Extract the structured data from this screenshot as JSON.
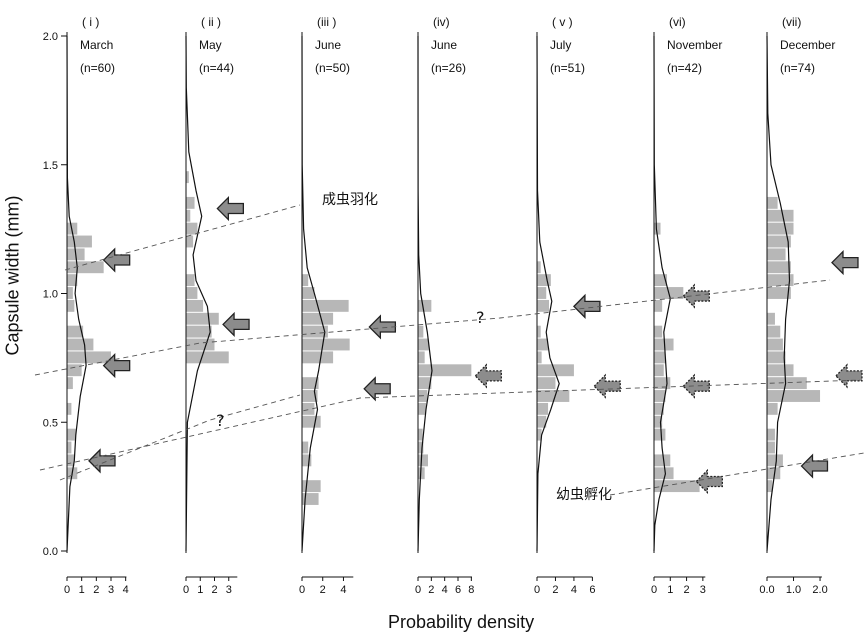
{
  "chart_data": {
    "type": "bar",
    "orientation": "horizontal-histogram-with-density-curve",
    "ylabel": "Capsule width (mm)",
    "xlabel": "Probability density",
    "ylim": [
      0,
      2.0
    ],
    "yticks": [
      "0.0",
      "0.5",
      "1.0",
      "1.5",
      "2.0"
    ],
    "bar_color": "#b7b7b7",
    "curve_color": "#111111",
    "arrow_color": "#8c8c8c",
    "panels": [
      {
        "roman": "( i )",
        "month": "March",
        "n": "(n=60)",
        "xmax": 4.5,
        "xticks": [
          {
            "v": 0,
            "t": "0"
          },
          {
            "v": 1,
            "t": "1"
          },
          {
            "v": 2,
            "t": "2"
          },
          {
            "v": 3,
            "t": "3"
          },
          {
            "v": 4,
            "t": "4"
          }
        ],
        "bins": [
          [
            0.3,
            0.7
          ],
          [
            0.35,
            0.5
          ],
          [
            0.4,
            0.3
          ],
          [
            0.45,
            0.6
          ],
          [
            0.55,
            0.3
          ],
          [
            0.65,
            0.4
          ],
          [
            0.7,
            1.0
          ],
          [
            0.75,
            3.0
          ],
          [
            0.8,
            1.8
          ],
          [
            0.85,
            1.1
          ],
          [
            0.95,
            0.5
          ],
          [
            1.0,
            0.4
          ],
          [
            1.05,
            0.7
          ],
          [
            1.1,
            2.5
          ],
          [
            1.15,
            1.2
          ],
          [
            1.2,
            1.7
          ],
          [
            1.25,
            0.7
          ]
        ],
        "curve": [
          [
            0.0,
            0.0
          ],
          [
            0.25,
            0.2
          ],
          [
            0.35,
            0.5
          ],
          [
            0.45,
            0.6
          ],
          [
            0.6,
            0.9
          ],
          [
            0.72,
            1.3
          ],
          [
            0.8,
            1.2
          ],
          [
            0.9,
            0.8
          ],
          [
            1.0,
            0.55
          ],
          [
            1.1,
            0.7
          ],
          [
            1.2,
            0.5
          ],
          [
            1.3,
            0.15
          ],
          [
            1.45,
            0.03
          ],
          [
            2.0,
            0.0
          ]
        ],
        "arrows": [
          {
            "y": 1.13,
            "x": 2.5
          },
          {
            "y": 0.72,
            "x": 2.5
          },
          {
            "y": 0.35,
            "x": 1.5
          }
        ]
      },
      {
        "roman": "( ii )",
        "month": "May",
        "n": "(n=44)",
        "xmax": 4.0,
        "xticks": [
          {
            "v": 0,
            "t": "0"
          },
          {
            "v": 1,
            "t": "1"
          },
          {
            "v": 2,
            "t": "2"
          },
          {
            "v": 3,
            "t": "3"
          }
        ],
        "bins": [
          [
            0.75,
            3.0
          ],
          [
            0.8,
            2.0
          ],
          [
            0.85,
            1.8
          ],
          [
            0.9,
            2.3
          ],
          [
            0.95,
            1.2
          ],
          [
            1.0,
            0.8
          ],
          [
            1.05,
            0.6
          ],
          [
            1.2,
            0.5
          ],
          [
            1.25,
            0.8
          ],
          [
            1.3,
            0.3
          ],
          [
            1.35,
            0.6
          ],
          [
            1.45,
            0.2
          ]
        ],
        "curve": [
          [
            0.0,
            0.0
          ],
          [
            0.5,
            0.1
          ],
          [
            0.7,
            0.8
          ],
          [
            0.85,
            1.7
          ],
          [
            0.95,
            1.5
          ],
          [
            1.05,
            0.7
          ],
          [
            1.15,
            0.5
          ],
          [
            1.3,
            1.1
          ],
          [
            1.4,
            0.7
          ],
          [
            1.55,
            0.2
          ],
          [
            1.8,
            0.02
          ],
          [
            2.0,
            0.0
          ]
        ],
        "arrows": [
          {
            "y": 1.33,
            "x": 2.2
          },
          {
            "y": 0.88,
            "x": 2.6
          }
        ]
      },
      {
        "roman": "(iii )",
        "month": "June",
        "n": "(n=50)",
        "xmax": 5.5,
        "xticks": [
          {
            "v": 0,
            "t": "0"
          },
          {
            "v": 2,
            "t": "2"
          },
          {
            "v": 4,
            "t": "4"
          }
        ],
        "bins": [
          [
            0.2,
            1.6
          ],
          [
            0.25,
            1.8
          ],
          [
            0.35,
            0.9
          ],
          [
            0.4,
            0.6
          ],
          [
            0.5,
            1.8
          ],
          [
            0.55,
            1.2
          ],
          [
            0.6,
            1.5
          ],
          [
            0.65,
            1.6
          ],
          [
            0.75,
            3.0
          ],
          [
            0.8,
            4.6
          ],
          [
            0.85,
            2.5
          ],
          [
            0.9,
            3.0
          ],
          [
            0.95,
            4.5
          ],
          [
            1.0,
            1.2
          ],
          [
            1.05,
            0.6
          ]
        ],
        "curve": [
          [
            0.0,
            0.0
          ],
          [
            0.2,
            0.3
          ],
          [
            0.4,
            0.8
          ],
          [
            0.55,
            1.5
          ],
          [
            0.62,
            1.2
          ],
          [
            0.7,
            1.6
          ],
          [
            0.85,
            2.2
          ],
          [
            1.0,
            1.2
          ],
          [
            1.1,
            0.5
          ],
          [
            1.25,
            0.15
          ],
          [
            1.5,
            0.02
          ],
          [
            2.0,
            0.0
          ]
        ],
        "arrows": [
          {
            "y": 0.87,
            "x": 6.5
          },
          {
            "y": 0.63,
            "x": 6.0
          }
        ]
      },
      {
        "roman": "(iv)",
        "month": "June",
        "n": "(n=26)",
        "xmax": 9.0,
        "xticks": [
          {
            "v": 0,
            "t": "0"
          },
          {
            "v": 2,
            "t": "2"
          },
          {
            "v": 4,
            "t": "4"
          },
          {
            "v": 6,
            "t": "6"
          },
          {
            "v": 8,
            "t": "8"
          }
        ],
        "bins": [
          [
            0.3,
            1.0
          ],
          [
            0.35,
            1.5
          ],
          [
            0.4,
            0.8
          ],
          [
            0.45,
            0.7
          ],
          [
            0.55,
            1.2
          ],
          [
            0.6,
            1.4
          ],
          [
            0.65,
            2.0
          ],
          [
            0.7,
            8.0
          ],
          [
            0.75,
            1.0
          ],
          [
            0.8,
            1.6
          ],
          [
            0.85,
            0.8
          ],
          [
            0.95,
            2.0
          ]
        ],
        "curve": [
          [
            0.0,
            0.0
          ],
          [
            0.2,
            0.2
          ],
          [
            0.4,
            0.6
          ],
          [
            0.55,
            1.2
          ],
          [
            0.7,
            2.1
          ],
          [
            0.85,
            1.4
          ],
          [
            1.0,
            0.4
          ],
          [
            1.15,
            0.1
          ],
          [
            1.4,
            0.02
          ],
          [
            2.0,
            0.0
          ]
        ],
        "arrows": [
          {
            "y": 0.68,
            "x": 8.6
          }
        ]
      },
      {
        "roman": "( v )",
        "month": "July",
        "n": "(n=51)",
        "xmax": 6.5,
        "xticks": [
          {
            "v": 0,
            "t": "0"
          },
          {
            "v": 2,
            "t": "2"
          },
          {
            "v": 4,
            "t": "4"
          },
          {
            "v": 6,
            "t": "6"
          }
        ],
        "bins": [
          [
            0.45,
            0.5
          ],
          [
            0.5,
            1.0
          ],
          [
            0.55,
            1.2
          ],
          [
            0.6,
            3.5
          ],
          [
            0.65,
            2.0
          ],
          [
            0.7,
            4.0
          ],
          [
            0.75,
            0.5
          ],
          [
            0.8,
            1.2
          ],
          [
            0.85,
            0.4
          ],
          [
            0.95,
            1.3
          ],
          [
            1.0,
            1.0
          ],
          [
            1.05,
            1.5
          ],
          [
            1.1,
            0.4
          ]
        ],
        "curve": [
          [
            0.0,
            0.0
          ],
          [
            0.3,
            0.1
          ],
          [
            0.45,
            0.5
          ],
          [
            0.55,
            1.5
          ],
          [
            0.65,
            2.4
          ],
          [
            0.75,
            1.4
          ],
          [
            0.85,
            1.0
          ],
          [
            0.97,
            1.6
          ],
          [
            1.05,
            1.1
          ],
          [
            1.2,
            0.3
          ],
          [
            1.4,
            0.05
          ],
          [
            2.0,
            0.0
          ]
        ],
        "arrows": [
          {
            "y": 0.95,
            "x": 4.0
          },
          {
            "y": 0.64,
            "x": 6.2
          }
        ]
      },
      {
        "roman": "(vi)",
        "month": "November",
        "n": "(n=42)",
        "xmax": 3.5,
        "xticks": [
          {
            "v": 0,
            "t": "0"
          },
          {
            "v": 1,
            "t": "1"
          },
          {
            "v": 2,
            "t": "2"
          },
          {
            "v": 3,
            "t": "3"
          }
        ],
        "bins": [
          [
            0.25,
            2.8
          ],
          [
            0.3,
            1.2
          ],
          [
            0.35,
            1.0
          ],
          [
            0.45,
            0.7
          ],
          [
            0.5,
            0.5
          ],
          [
            0.55,
            0.6
          ],
          [
            0.6,
            0.7
          ],
          [
            0.65,
            1.0
          ],
          [
            0.7,
            0.6
          ],
          [
            0.75,
            0.7
          ],
          [
            0.8,
            1.2
          ],
          [
            0.85,
            0.5
          ],
          [
            0.95,
            0.5
          ],
          [
            1.0,
            1.8
          ],
          [
            1.05,
            0.8
          ],
          [
            1.25,
            0.4
          ]
        ],
        "curve": [
          [
            0.0,
            0.0
          ],
          [
            0.1,
            0.05
          ],
          [
            0.2,
            0.3
          ],
          [
            0.3,
            0.7
          ],
          [
            0.4,
            0.5
          ],
          [
            0.5,
            0.4
          ],
          [
            0.65,
            0.8
          ],
          [
            0.75,
            0.7
          ],
          [
            0.85,
            0.6
          ],
          [
            0.98,
            1.0
          ],
          [
            1.1,
            0.5
          ],
          [
            1.25,
            0.15
          ],
          [
            1.5,
            0.02
          ],
          [
            2.0,
            0.0
          ]
        ],
        "arrows": [
          {
            "y": 0.99,
            "x": 1.8
          },
          {
            "y": 0.64,
            "x": 1.8
          },
          {
            "y": 0.27,
            "x": 2.6
          }
        ]
      },
      {
        "roman": "(vii)",
        "month": "December",
        "n": "(n=74)",
        "xmax": 2.3,
        "xticks": [
          {
            "v": 0,
            "t": "0.0"
          },
          {
            "v": 1,
            "t": "1.0"
          },
          {
            "v": 2,
            "t": "2.0"
          }
        ],
        "bins": [
          [
            0.25,
            0.2
          ],
          [
            0.3,
            0.5
          ],
          [
            0.35,
            0.6
          ],
          [
            0.4,
            0.3
          ],
          [
            0.45,
            0.3
          ],
          [
            0.55,
            0.4
          ],
          [
            0.6,
            2.0
          ],
          [
            0.65,
            1.5
          ],
          [
            0.7,
            1.0
          ],
          [
            0.75,
            0.7
          ],
          [
            0.8,
            0.6
          ],
          [
            0.85,
            0.5
          ],
          [
            0.9,
            0.3
          ],
          [
            1.0,
            0.9
          ],
          [
            1.05,
            1.0
          ],
          [
            1.1,
            0.9
          ],
          [
            1.15,
            0.7
          ],
          [
            1.2,
            0.9
          ],
          [
            1.25,
            1.0
          ],
          [
            1.3,
            1.0
          ],
          [
            1.35,
            0.4
          ]
        ],
        "curve": [
          [
            0.0,
            0.0
          ],
          [
            0.2,
            0.15
          ],
          [
            0.35,
            0.35
          ],
          [
            0.5,
            0.4
          ],
          [
            0.65,
            0.7
          ],
          [
            0.75,
            0.65
          ],
          [
            0.9,
            0.7
          ],
          [
            1.05,
            0.85
          ],
          [
            1.2,
            0.8
          ],
          [
            1.35,
            0.5
          ],
          [
            1.5,
            0.15
          ],
          [
            1.7,
            0.03
          ],
          [
            2.0,
            0.0
          ]
        ],
        "arrows": [
          {
            "y": 1.12,
            "x": 2.45
          },
          {
            "y": 0.68,
            "x": 2.6
          },
          {
            "y": 0.33,
            "x": 1.3
          }
        ]
      }
    ],
    "annotations": [
      {
        "text": "成虫羽化",
        "label": "adult-emergence"
      },
      {
        "text": "幼虫孵化",
        "label": "larval-hatching"
      },
      {
        "text": "?",
        "label": "question-1"
      },
      {
        "text": "?",
        "label": "question-2"
      }
    ]
  }
}
